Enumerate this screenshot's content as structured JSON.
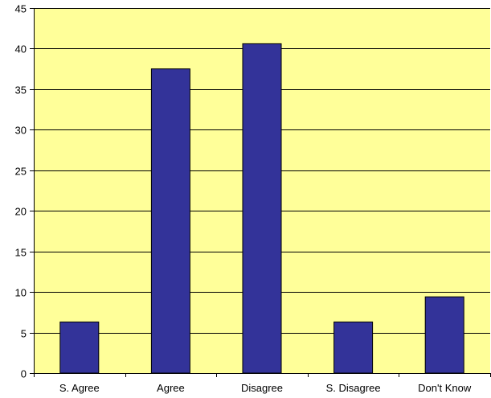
{
  "chart_data": {
    "type": "bar",
    "categories": [
      "S. Agree",
      "Agree",
      "Disagree",
      "S. Disagree",
      "Don't Know"
    ],
    "values": [
      6.3,
      37.5,
      40.6,
      6.3,
      9.4
    ],
    "ylim": [
      0,
      45
    ],
    "yticks": [
      0,
      5,
      10,
      15,
      20,
      25,
      30,
      35,
      40,
      45
    ],
    "grid": true,
    "legend": "none",
    "colors": {
      "bar": "#333399",
      "plot_background": "#ffff99",
      "gridline": "#000000",
      "axis": "#000000"
    }
  }
}
